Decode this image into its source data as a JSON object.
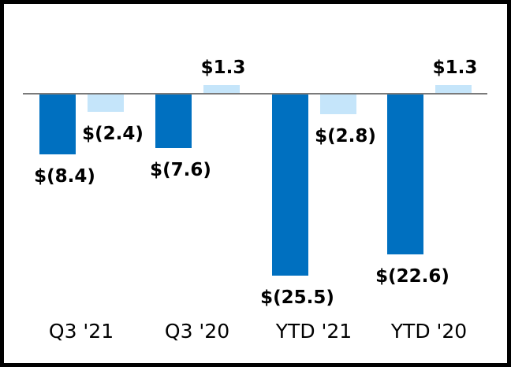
{
  "chart_data": {
    "type": "bar",
    "title": "",
    "categories": [
      "Q3 '21",
      "Q3 '20",
      "YTD '21",
      "YTD '20"
    ],
    "series": [
      {
        "name": "primary-series",
        "color": "#0070C0",
        "values": [
          -8.4,
          -7.6,
          -25.5,
          -22.6
        ],
        "labels": [
          "$(8.4)",
          "$(7.6)",
          "$(25.5)",
          "$(22.6)"
        ]
      },
      {
        "name": "secondary-series",
        "color": "#C5E5FA",
        "values": [
          -2.4,
          1.3,
          -2.8,
          1.3
        ],
        "labels": [
          "$(2.4)",
          "$1.3",
          "$(2.8)",
          "$1.3"
        ]
      }
    ],
    "ylim": [
      -27,
      3
    ],
    "grid": false,
    "legend": "none",
    "axis": {
      "baseline_value": 0,
      "line_color": "#7a7a7a"
    },
    "frame": {
      "border_color": "#000000",
      "background": "#FFFFFF"
    }
  }
}
